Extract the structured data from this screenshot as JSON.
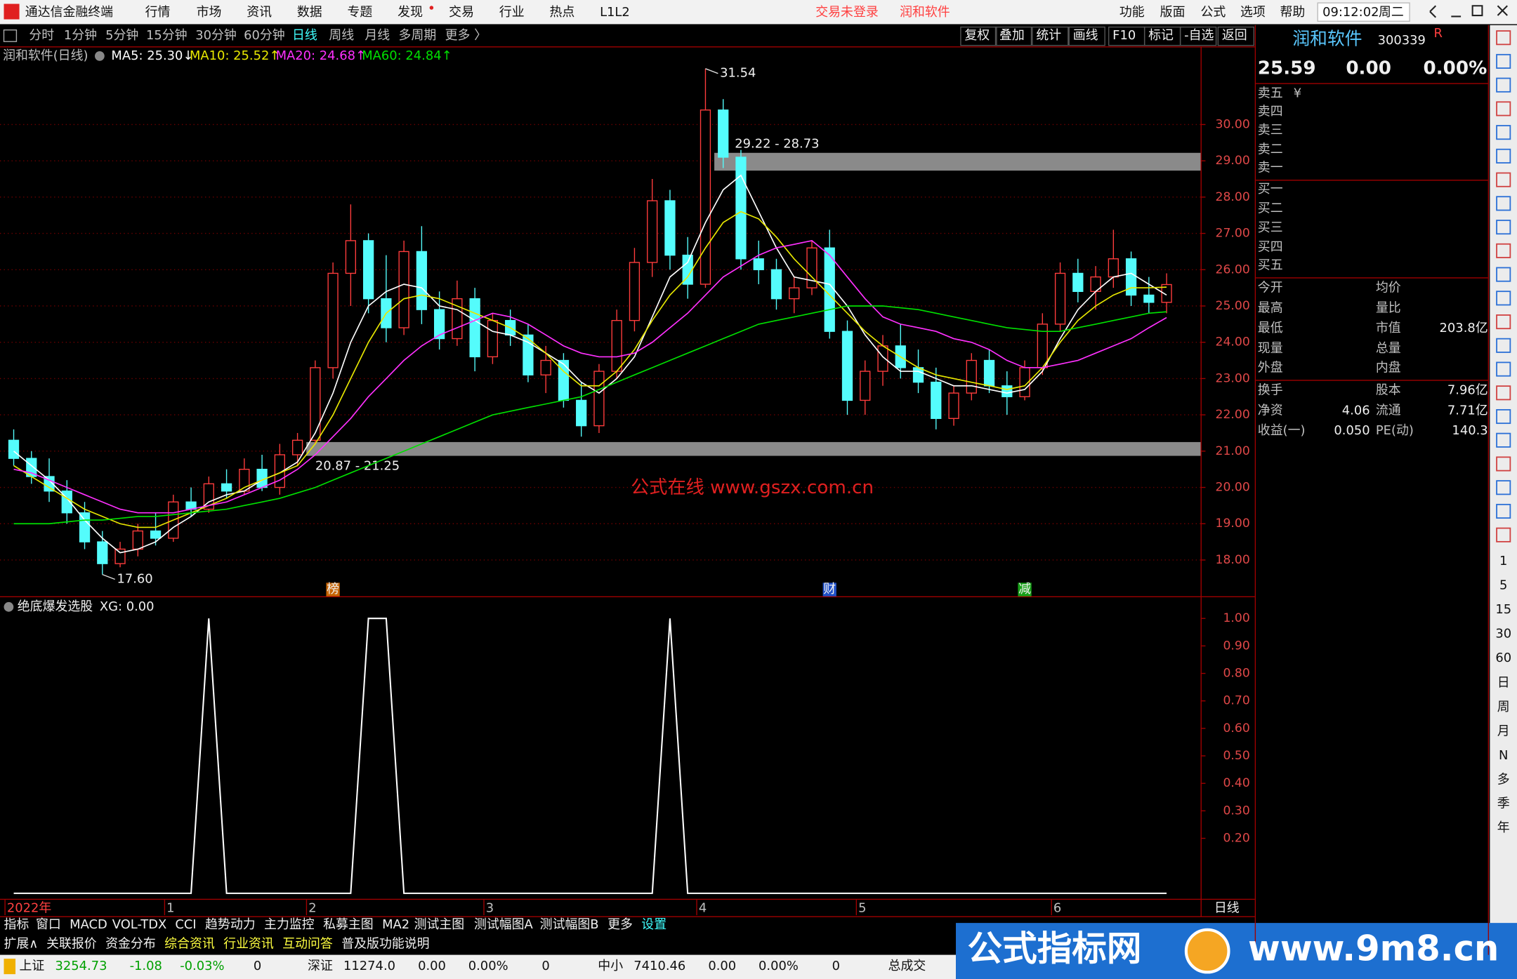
{
  "title_bar": {
    "app": "通达信金融终端",
    "menu": [
      "行情",
      "市场",
      "资讯",
      "数据",
      "专题",
      "发现",
      "交易",
      "行业",
      "热点",
      "L1L2"
    ],
    "status": "交易未登录",
    "stock": "润和软件",
    "right_menu": [
      "功能",
      "版面",
      "公式",
      "选项",
      "帮助"
    ],
    "time": "09:12:02",
    "weekday": "周二"
  },
  "toolbar": {
    "periods": [
      "分时",
      "1分钟",
      "5分钟",
      "15分钟",
      "30分钟",
      "60分钟",
      "日线",
      "周线",
      "月线",
      "多周期",
      "更多 〉"
    ],
    "tools": [
      "复权",
      "叠加",
      "统计",
      "画线",
      "F10",
      "标记",
      "-自选",
      "返回"
    ]
  },
  "chart_data": [
    {
      "type": "candlestick",
      "title": "润和软件(日线)",
      "categories": [
        "2022年",
        null,
        null,
        null,
        null,
        null,
        null,
        null,
        null,
        "1",
        null,
        null,
        null,
        null,
        null,
        null,
        null,
        "2",
        null,
        null,
        null,
        null,
        null,
        null,
        null,
        null,
        null,
        "3",
        null,
        null,
        null,
        null,
        null,
        null,
        null,
        null,
        null,
        null,
        null,
        "4",
        null,
        null,
        null,
        null,
        null,
        null,
        null,
        null,
        "5",
        null,
        null,
        null,
        null,
        null,
        null,
        null,
        null,
        null,
        null,
        "6",
        null,
        null,
        null,
        null,
        null,
        null
      ],
      "open": [
        21.3,
        20.8,
        20.3,
        19.9,
        19.3,
        18.5,
        17.9,
        18.3,
        18.8,
        18.6,
        19.6,
        19.4,
        20.1,
        19.9,
        20.5,
        20.0,
        20.9,
        21.3,
        23.3,
        25.9,
        26.8,
        25.2,
        24.4,
        26.5,
        24.9,
        24.1,
        25.2,
        23.6,
        24.6,
        24.2,
        23.1,
        23.5,
        22.4,
        21.7,
        23.2,
        24.6,
        26.2,
        27.9,
        26.4,
        25.6,
        30.4,
        29.1,
        26.3,
        26.0,
        25.2,
        25.5,
        26.6,
        24.3,
        22.4,
        23.2,
        23.9,
        23.3,
        22.9,
        21.9,
        22.6,
        23.5,
        22.8,
        22.5,
        23.3,
        24.5,
        25.9,
        25.4,
        25.8,
        26.3,
        25.3,
        25.1
      ],
      "high": [
        21.6,
        21.0,
        20.8,
        20.2,
        19.6,
        18.8,
        18.5,
        19.0,
        19.3,
        19.8,
        20.0,
        20.3,
        20.5,
        20.8,
        20.9,
        21.2,
        21.5,
        23.5,
        26.2,
        27.8,
        27.0,
        26.4,
        26.8,
        27.2,
        25.4,
        25.7,
        25.5,
        24.8,
        24.9,
        24.5,
        23.9,
        23.7,
        22.9,
        23.4,
        24.9,
        26.6,
        28.5,
        28.2,
        26.9,
        31.54,
        30.7,
        29.3,
        26.8,
        26.3,
        25.8,
        26.8,
        27.1,
        24.6,
        23.5,
        24.2,
        24.5,
        23.8,
        23.3,
        22.8,
        23.7,
        23.8,
        23.2,
        23.5,
        24.8,
        26.2,
        26.3,
        26.1,
        27.1,
        26.5,
        25.8,
        25.9
      ],
      "low": [
        20.6,
        20.1,
        19.6,
        19.0,
        18.3,
        17.6,
        17.8,
        18.1,
        18.4,
        18.5,
        19.2,
        19.3,
        19.7,
        19.8,
        19.9,
        19.8,
        20.6,
        21.2,
        23.0,
        25.0,
        24.8,
        24.0,
        24.2,
        24.5,
        23.8,
        23.9,
        23.2,
        23.4,
        23.9,
        22.9,
        22.6,
        22.2,
        21.4,
        21.5,
        23.0,
        24.3,
        25.8,
        26.0,
        25.2,
        25.5,
        28.8,
        26.0,
        25.6,
        24.9,
        24.8,
        25.3,
        24.1,
        22.0,
        22.0,
        22.8,
        23.0,
        22.6,
        21.6,
        21.7,
        22.4,
        22.6,
        22.0,
        22.4,
        23.1,
        24.3,
        25.1,
        24.9,
        25.5,
        25.0,
        24.8,
        24.8
      ],
      "close": [
        20.8,
        20.3,
        19.9,
        19.3,
        18.5,
        17.9,
        18.3,
        18.8,
        18.6,
        19.6,
        19.4,
        20.1,
        19.9,
        20.5,
        20.0,
        20.9,
        21.3,
        23.3,
        25.9,
        26.8,
        25.2,
        24.4,
        26.5,
        24.9,
        24.1,
        25.2,
        23.6,
        24.6,
        24.2,
        23.1,
        23.5,
        22.4,
        21.7,
        23.2,
        24.6,
        26.2,
        27.9,
        26.4,
        25.6,
        30.4,
        29.1,
        26.3,
        26.0,
        25.2,
        25.5,
        26.6,
        24.3,
        22.4,
        23.2,
        23.9,
        23.3,
        22.9,
        21.9,
        22.6,
        23.5,
        22.8,
        22.5,
        23.3,
        24.5,
        25.9,
        25.4,
        25.8,
        26.3,
        25.3,
        25.1,
        25.59
      ],
      "up_color": "#ff3c3c",
      "down_color": "#54fcfc",
      "ylim": [
        17.0,
        32.1
      ],
      "yticks": [
        {
          "value": 18,
          "label": "18.00"
        },
        {
          "value": 19,
          "label": "19.00"
        },
        {
          "value": 20,
          "label": "20.00"
        },
        {
          "value": 21,
          "label": "21.00"
        },
        {
          "value": 22,
          "label": "22.00"
        },
        {
          "value": 23,
          "label": "23.00"
        },
        {
          "value": 24,
          "label": "24.00"
        },
        {
          "value": 25,
          "label": "25.00"
        },
        {
          "value": 26,
          "label": "26.00"
        },
        {
          "value": 27,
          "label": "27.00"
        },
        {
          "value": 28,
          "label": "28.00"
        },
        {
          "value": 29,
          "label": "29.00"
        },
        {
          "value": 30,
          "label": "30.00"
        }
      ],
      "grid": true,
      "series": [
        {
          "name": "MA5",
          "legend_label": "MA5: 25.30↓",
          "color": "#ffffff",
          "values": [
            21.0,
            20.6,
            20.2,
            19.7,
            19.1,
            18.6,
            18.2,
            18.3,
            18.5,
            18.9,
            19.2,
            19.6,
            19.8,
            19.9,
            20.2,
            20.4,
            20.7,
            21.5,
            22.6,
            24.0,
            25.0,
            25.4,
            25.6,
            25.5,
            25.0,
            24.9,
            24.6,
            24.3,
            24.2,
            24.0,
            23.7,
            23.4,
            22.9,
            22.6,
            23.0,
            23.6,
            24.7,
            25.8,
            26.2,
            27.3,
            28.2,
            28.6,
            27.6,
            26.6,
            25.8,
            25.7,
            25.6,
            25.0,
            24.2,
            23.6,
            23.2,
            23.2,
            23.0,
            22.8,
            22.8,
            22.7,
            22.6,
            22.7,
            23.2,
            24.1,
            24.9,
            25.4,
            25.8,
            25.9,
            25.6,
            25.3
          ]
        },
        {
          "name": "MA10",
          "legend_label": "MA10: 25.52↑",
          "color": "#e8e800",
          "values": [
            20.6,
            20.3,
            20.0,
            19.7,
            19.4,
            19.2,
            19.0,
            18.9,
            18.9,
            19.1,
            19.3,
            19.5,
            19.7,
            20.0,
            20.2,
            20.4,
            20.6,
            21.2,
            22.0,
            23.0,
            24.0,
            24.8,
            25.2,
            25.3,
            25.2,
            25.0,
            24.8,
            24.6,
            24.4,
            24.1,
            23.7,
            23.2,
            22.8,
            22.8,
            23.2,
            23.8,
            24.6,
            25.3,
            25.8,
            26.6,
            27.3,
            27.6,
            27.4,
            26.9,
            26.3,
            25.8,
            25.3,
            24.8,
            24.3,
            23.9,
            23.6,
            23.3,
            23.1,
            23.0,
            22.9,
            22.8,
            22.7,
            22.8,
            23.3,
            24.0,
            24.6,
            25.0,
            25.3,
            25.5,
            25.5,
            25.52
          ]
        },
        {
          "name": "MA20",
          "legend_label": "MA20: 24.68↑",
          "color": "#ff30ff",
          "values": [
            20.5,
            20.4,
            20.2,
            20.0,
            19.8,
            19.6,
            19.4,
            19.3,
            19.3,
            19.3,
            19.4,
            19.5,
            19.6,
            19.8,
            20.0,
            20.2,
            20.5,
            20.9,
            21.4,
            21.9,
            22.5,
            23.0,
            23.5,
            23.9,
            24.2,
            24.4,
            24.6,
            24.8,
            24.7,
            24.5,
            24.2,
            23.9,
            23.7,
            23.6,
            23.6,
            23.7,
            24.0,
            24.4,
            24.8,
            25.3,
            25.8,
            26.1,
            26.4,
            26.6,
            26.7,
            26.8,
            26.4,
            25.8,
            25.2,
            24.7,
            24.5,
            24.4,
            24.3,
            24.1,
            24.0,
            23.8,
            23.5,
            23.3,
            23.3,
            23.4,
            23.5,
            23.7,
            23.9,
            24.1,
            24.4,
            24.68
          ]
        },
        {
          "name": "MA60",
          "legend_label": "MA60: 24.84↑",
          "color": "#00e000",
          "values": [
            19.0,
            19.0,
            19.0,
            19.05,
            19.1,
            19.1,
            19.15,
            19.2,
            19.2,
            19.25,
            19.3,
            19.35,
            19.4,
            19.5,
            19.6,
            19.7,
            19.85,
            20.0,
            20.2,
            20.4,
            20.6,
            20.8,
            21.0,
            21.2,
            21.4,
            21.6,
            21.8,
            22.0,
            22.1,
            22.2,
            22.3,
            22.4,
            22.5,
            22.7,
            22.9,
            23.1,
            23.3,
            23.5,
            23.7,
            23.9,
            24.1,
            24.3,
            24.5,
            24.6,
            24.7,
            24.8,
            24.9,
            25.0,
            25.0,
            25.0,
            24.95,
            24.9,
            24.8,
            24.7,
            24.6,
            24.5,
            24.4,
            24.35,
            24.3,
            24.3,
            24.4,
            24.5,
            24.6,
            24.7,
            24.8,
            24.84
          ]
        }
      ],
      "bands": [
        {
          "label": "29.22 - 28.73",
          "low": 28.73,
          "high": 29.22,
          "start_index": 40
        },
        {
          "label": "20.87 - 21.25",
          "low": 20.87,
          "high": 21.25,
          "start_index": 17
        }
      ],
      "annotations": [
        {
          "text": "31.54",
          "value": 31.54,
          "index": 39
        },
        {
          "text": "17.60",
          "value": 17.6,
          "index": 5
        }
      ],
      "events": [
        {
          "text": "榜",
          "index": 18,
          "color": "#c86400"
        },
        {
          "text": "财",
          "index": 46,
          "color": "#2050c8"
        },
        {
          "text": "减",
          "index": 57,
          "color": "#18a018"
        }
      ],
      "watermark": "公式在线 www.gszx.com.cn"
    },
    {
      "type": "line",
      "title": "绝底爆发选股",
      "value_label": "XG: 0.00",
      "color": "#ffffff",
      "values": [
        0,
        0,
        0,
        0,
        0,
        0,
        0,
        0,
        0,
        0,
        0,
        1,
        0,
        0,
        0,
        0,
        0,
        0,
        0,
        0,
        1,
        1,
        0,
        0,
        0,
        0,
        0,
        0,
        0,
        0,
        0,
        0,
        0,
        0,
        0,
        0,
        0,
        1,
        0,
        0,
        0,
        0,
        0,
        0,
        0,
        0,
        0,
        0,
        0,
        0,
        0,
        0,
        0,
        0,
        0,
        0,
        0,
        0,
        0,
        0,
        0,
        0,
        0,
        0,
        0,
        0
      ],
      "ylim": [
        -0.02,
        1.07
      ],
      "yticks": [
        {
          "value": 0.2,
          "label": "0.20"
        },
        {
          "value": 0.3,
          "label": "0.30"
        },
        {
          "value": 0.4,
          "label": "0.40"
        },
        {
          "value": 0.5,
          "label": "0.50"
        },
        {
          "value": 0.6,
          "label": "0.60"
        },
        {
          "value": 0.7,
          "label": "0.70"
        },
        {
          "value": 0.8,
          "label": "0.80"
        },
        {
          "value": 0.9,
          "label": "0.90"
        },
        {
          "value": 1,
          "label": "1.00"
        }
      ]
    }
  ],
  "period_label": "日线",
  "quote_panel": {
    "name": "润和软件",
    "code": "300339",
    "mark": "R",
    "price": "25.59",
    "change": "0.00",
    "change_pct": "0.00%",
    "asks": [
      "卖五",
      "卖四",
      "卖三",
      "卖二",
      "卖一"
    ],
    "ask_mark": "¥",
    "bids": [
      "买一",
      "买二",
      "买三",
      "买四",
      "买五"
    ],
    "stats": [
      {
        "label": "今开"
      },
      {
        "label": "均价"
      },
      {
        "label": "最高"
      },
      {
        "label": "量比"
      },
      {
        "label": "最低"
      },
      {
        "label": "市值",
        "value": "203.8亿"
      },
      {
        "label": "现量"
      },
      {
        "label": "总量"
      },
      {
        "label": "外盘"
      },
      {
        "label": "内盘"
      },
      {
        "label": "换手"
      },
      {
        "label": "股本",
        "value": "7.96亿"
      },
      {
        "label": "净资",
        "value": "4.06"
      },
      {
        "label": "流通",
        "value": "7.71亿"
      },
      {
        "label": "收益(一)",
        "value": "0.050"
      },
      {
        "label": "PE(动)",
        "value": "140.3"
      }
    ]
  },
  "side_buttons": [
    "1",
    "5",
    "15",
    "30",
    "60",
    "日",
    "周",
    "月",
    "N",
    "多",
    "季",
    "年"
  ],
  "indicator_tabs": [
    "指标",
    "窗口",
    "MACD",
    "VOL-TDX",
    "CCI",
    "趋势动力",
    "主力监控",
    "私募主图",
    "MA2",
    "测试主图",
    "测试幅图A",
    "测试幅图B",
    "更多",
    "设置"
  ],
  "info_tabs": [
    "扩展∧",
    "关联报价",
    "资金分布",
    "综合资讯",
    "行业资讯",
    "互动问答",
    "普及版功能说明"
  ],
  "status_bar": {
    "indices": [
      {
        "name": "上证",
        "value": "3254.73",
        "change": "-1.08",
        "pct": "-0.03%",
        "volume": "0"
      },
      {
        "name": "深证",
        "value": "11274.0",
        "change": "0.00",
        "pct": "0.00%",
        "volume": "0"
      },
      {
        "name": "中小",
        "value": "7410.46",
        "change": "0.00",
        "pct": "0.00%",
        "volume": "0"
      }
    ],
    "total": "总成交"
  },
  "banner": {
    "site_name": "公式指标网",
    "url": "www.9m8.cn"
  }
}
